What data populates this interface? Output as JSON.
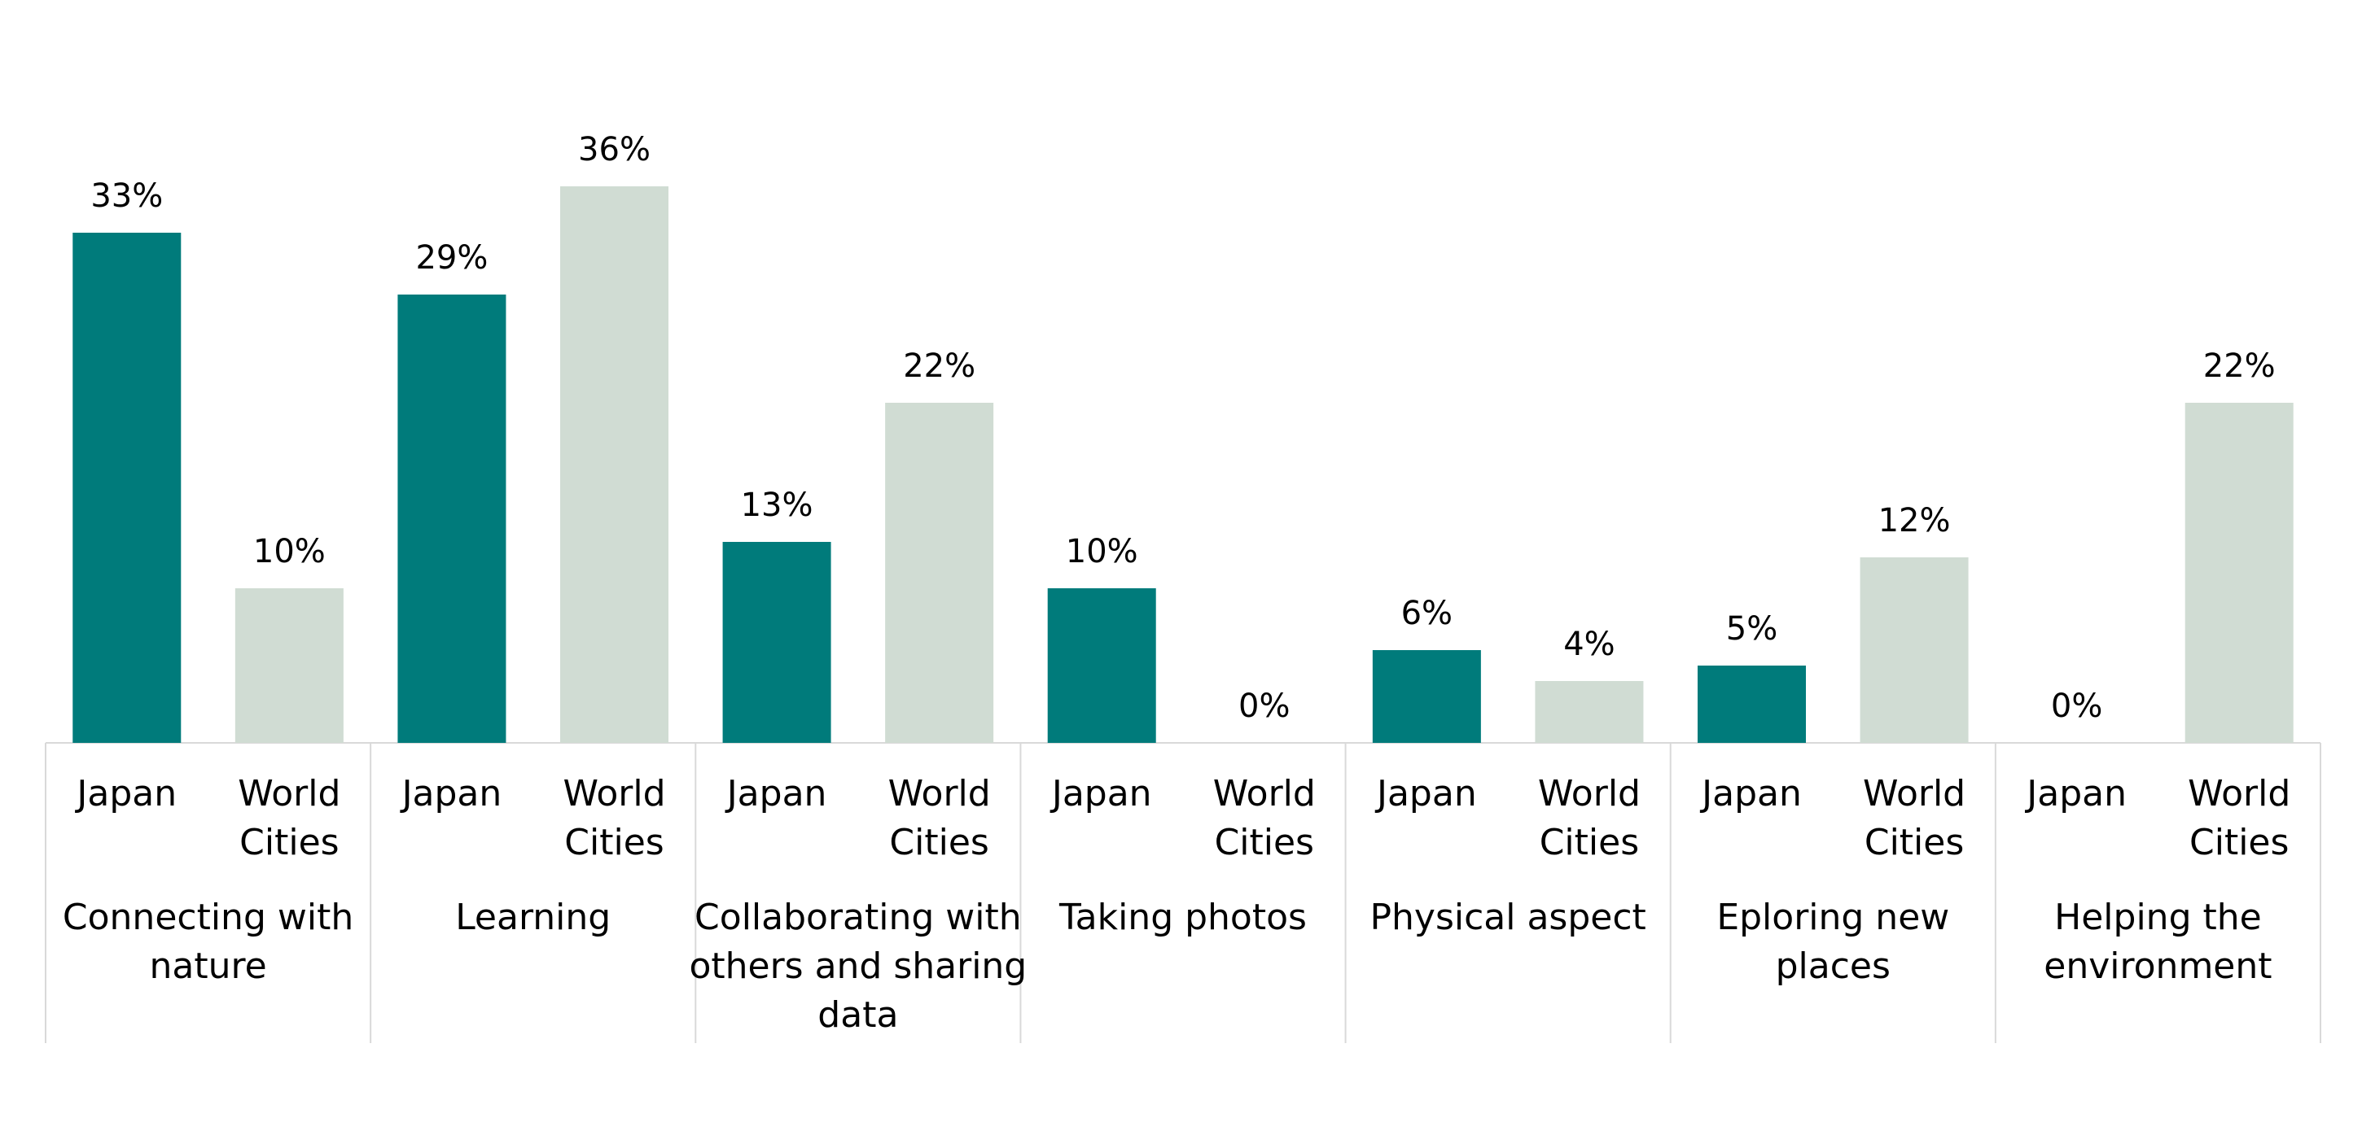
{
  "chart_data": {
    "type": "bar",
    "groups": [
      {
        "label_lines": [
          "Connecting with",
          "nature"
        ],
        "values": [
          33,
          10
        ]
      },
      {
        "label_lines": [
          "Learning"
        ],
        "values": [
          29,
          36
        ]
      },
      {
        "label_lines": [
          "Collaborating with",
          "others and sharing",
          "data"
        ],
        "values": [
          13,
          22
        ]
      },
      {
        "label_lines": [
          "Taking photos"
        ],
        "values": [
          10,
          0
        ]
      },
      {
        "label_lines": [
          "Physical aspect"
        ],
        "values": [
          6,
          4
        ]
      },
      {
        "label_lines": [
          "Eploring new",
          "places"
        ],
        "values": [
          5,
          12
        ]
      },
      {
        "label_lines": [
          "Helping the",
          "environment"
        ],
        "values": [
          0,
          22
        ]
      }
    ],
    "categories": [
      {
        "label_lines": [
          "Japan"
        ],
        "color": "#007b7b"
      },
      {
        "label_lines": [
          "World",
          "Cities"
        ],
        "color": "#d0dcd3"
      }
    ],
    "value_suffix": "%",
    "ylim": [
      0,
      40
    ],
    "grid": false,
    "legend": "none"
  }
}
